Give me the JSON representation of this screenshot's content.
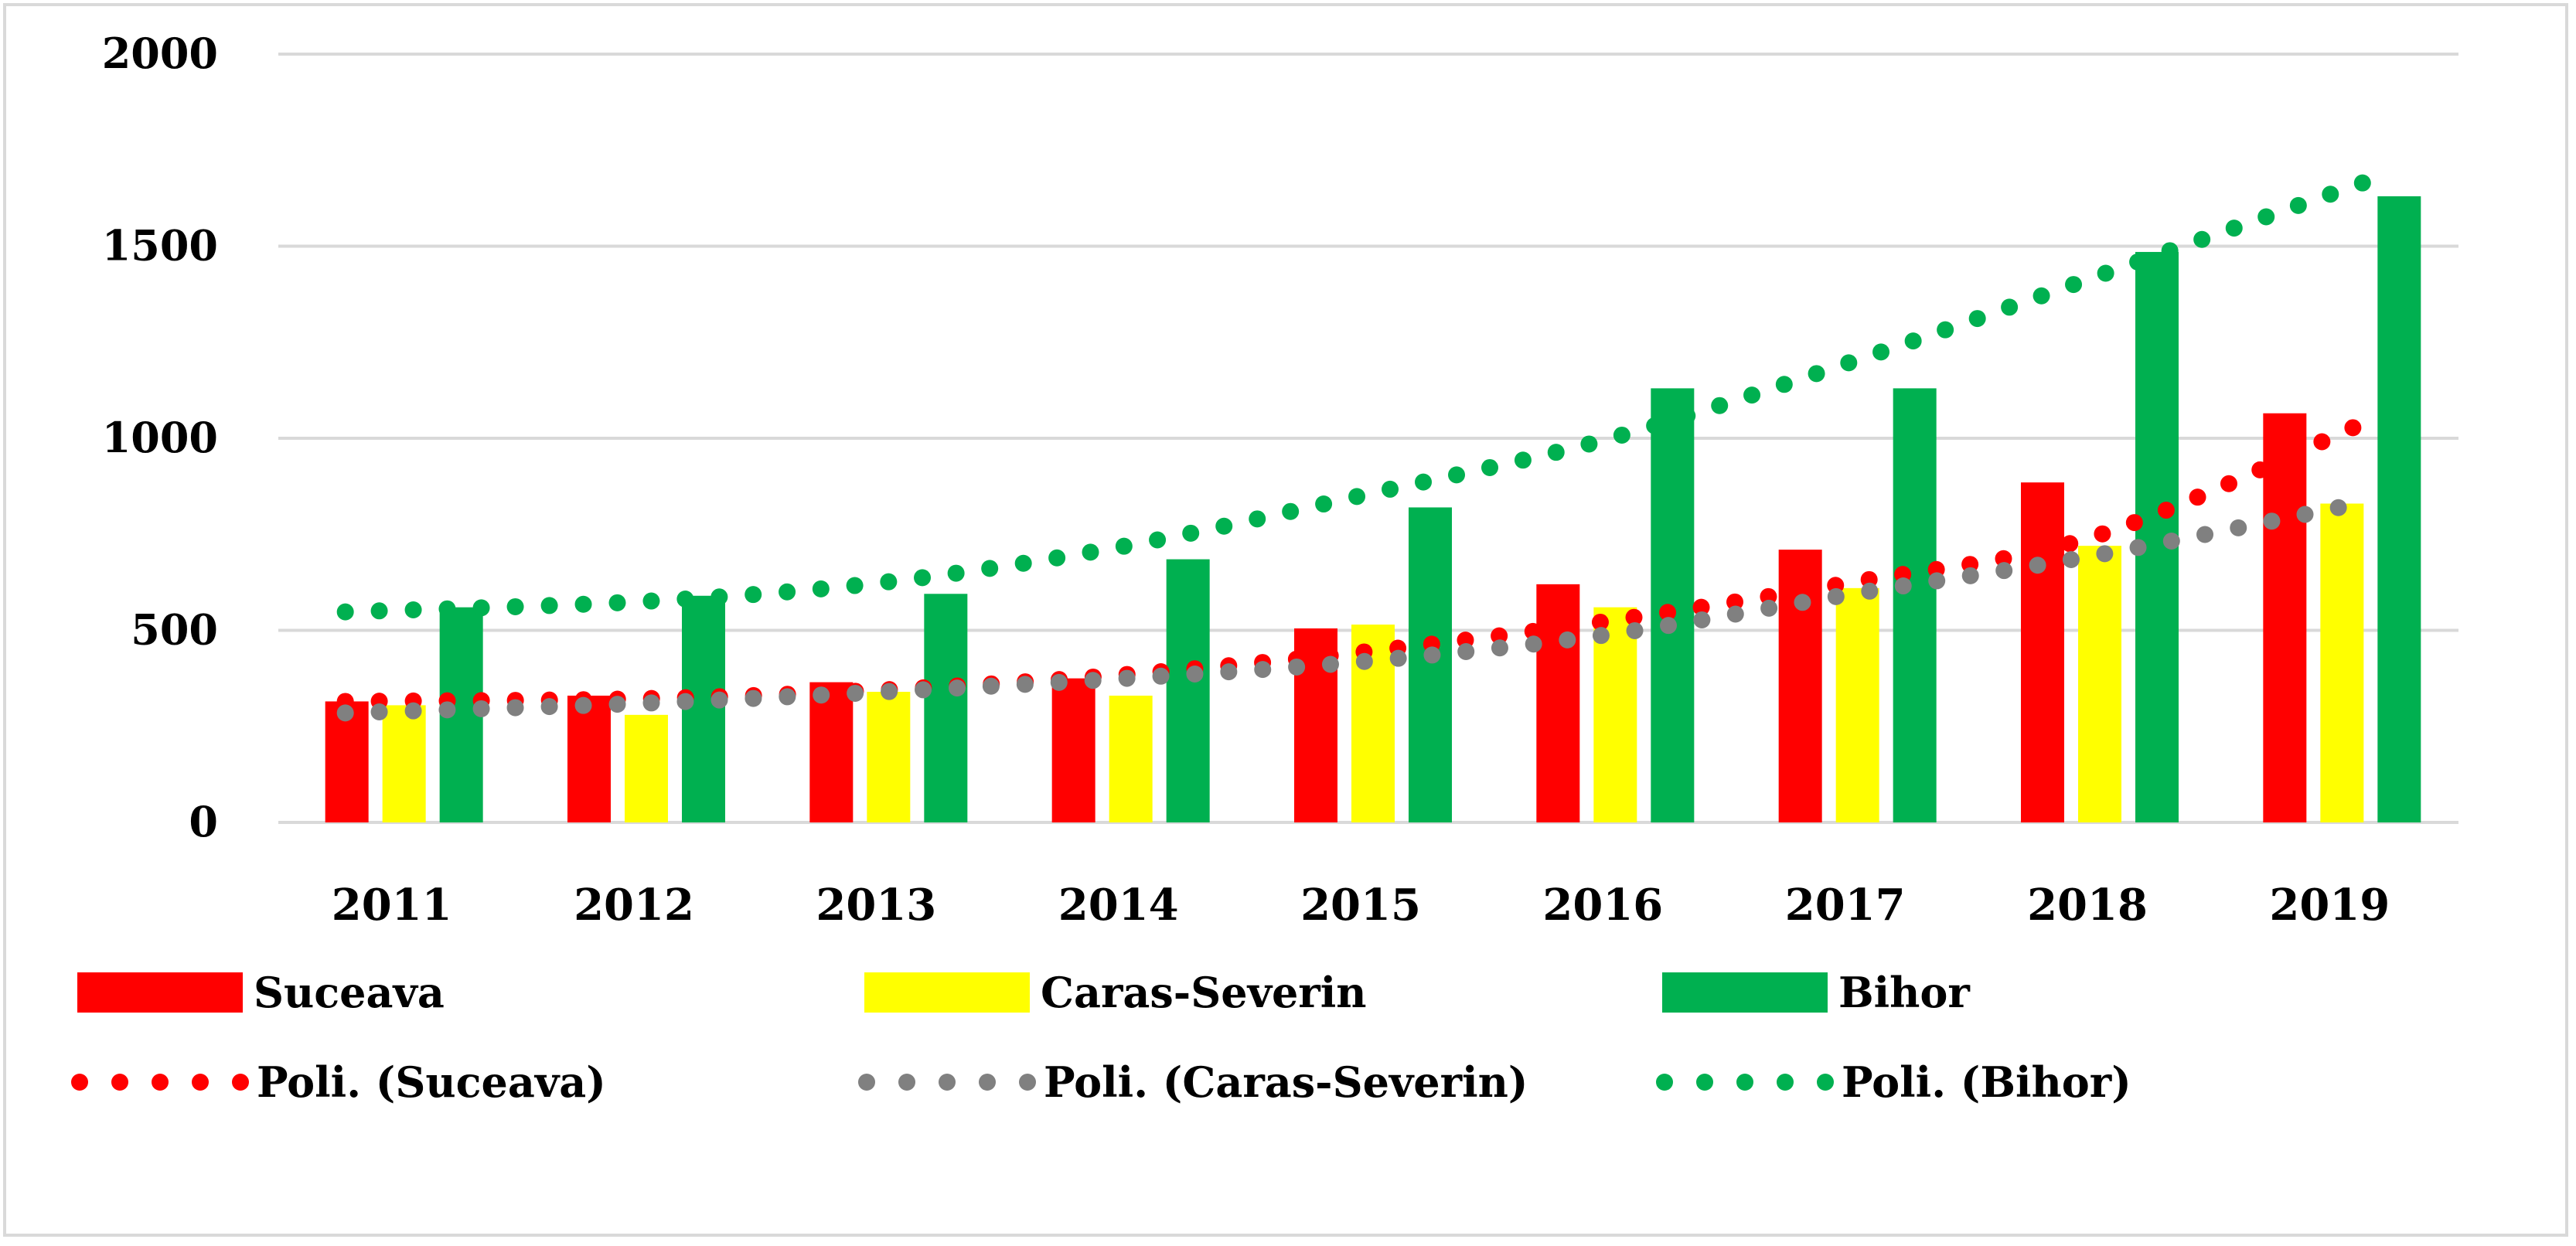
{
  "chart_data": {
    "type": "bar",
    "title": "",
    "xlabel": "",
    "ylabel": "",
    "categories": [
      "2011",
      "2012",
      "2013",
      "2014",
      "2015",
      "2016",
      "2017",
      "2018",
      "2019"
    ],
    "ylim": [
      0,
      2000
    ],
    "yticks": [
      "0",
      "500",
      "1000",
      "1500",
      "2000"
    ],
    "grid": true,
    "legend_position": "bottom",
    "series": [
      {
        "name": "Suceava",
        "color": "#ff0000",
        "values": [
          315,
          330,
          365,
          375,
          505,
          620,
          710,
          885,
          1065
        ]
      },
      {
        "name": "Caras-Severin",
        "color": "#ffff00",
        "values": [
          305,
          280,
          340,
          330,
          515,
          560,
          610,
          720,
          830
        ]
      },
      {
        "name": "Bihor",
        "color": "#00b050",
        "values": [
          560,
          590,
          595,
          685,
          820,
          1130,
          1130,
          1485,
          1630
        ]
      }
    ],
    "trendlines": [
      {
        "name": "Poli. (Suceava)",
        "color": "#ff0000",
        "values": [
          315,
          322,
          345,
          385,
          445,
          525,
          625,
          745,
          1045
        ]
      },
      {
        "name": "Poli. (Caras-Severin)",
        "color": "#808080",
        "values": [
          285,
          310,
          340,
          375,
          420,
          490,
          595,
          695,
          835
        ]
      },
      {
        "name": "Poli. (Bihor)",
        "color": "#00b050",
        "values": [
          548,
          575,
          625,
          720,
          855,
          1000,
          1200,
          1420,
          1670
        ]
      }
    ]
  }
}
